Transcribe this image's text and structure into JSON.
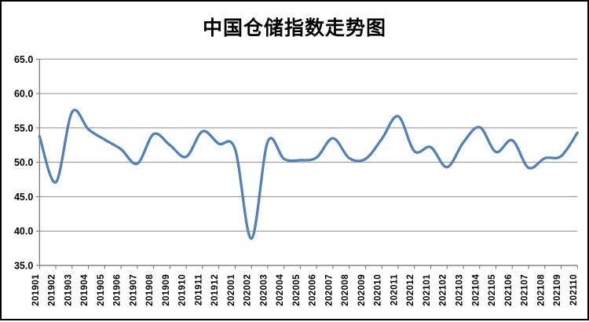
{
  "page": {
    "title": "中国仓储指数走势图"
  },
  "chart_data": {
    "type": "line",
    "title": "中国仓储指数走势图",
    "categories": [
      "201901",
      "201902",
      "201903",
      "201904",
      "201905",
      "201906",
      "201907",
      "201908",
      "201909",
      "201910",
      "201911",
      "201912",
      "202001",
      "202002",
      "202003",
      "202004",
      "202005",
      "202006",
      "202007",
      "202008",
      "202009",
      "202010",
      "202011",
      "202012",
      "202101",
      "202102",
      "202103",
      "202104",
      "202105",
      "202106",
      "202107",
      "202108",
      "202109",
      "202110"
    ],
    "values": [
      53.8,
      47.1,
      57.3,
      54.8,
      53.3,
      51.9,
      49.8,
      54.1,
      52.5,
      50.8,
      54.5,
      52.7,
      51.9,
      38.9,
      53.0,
      50.5,
      50.3,
      50.7,
      53.5,
      50.6,
      50.5,
      53.4,
      56.7,
      51.6,
      52.2,
      49.3,
      52.9,
      55.1,
      51.5,
      53.2,
      49.2,
      50.6,
      50.9,
      54.3
    ],
    "xlabel": "",
    "ylabel": "",
    "ylim": [
      35.0,
      65.0
    ],
    "ytick_step": 5.0,
    "ytick_labels": [
      "65.0",
      "60.0",
      "55.0",
      "50.0",
      "45.0",
      "40.0",
      "35.0"
    ],
    "grid": "horizontal",
    "legend": "none",
    "smoothed_line": true,
    "line_color": "#4F81BD",
    "grid_color": "#8C8C8C",
    "axis_color": "#6E6E6E",
    "text_color": "#000000",
    "background_color": "#FFFFFF"
  }
}
